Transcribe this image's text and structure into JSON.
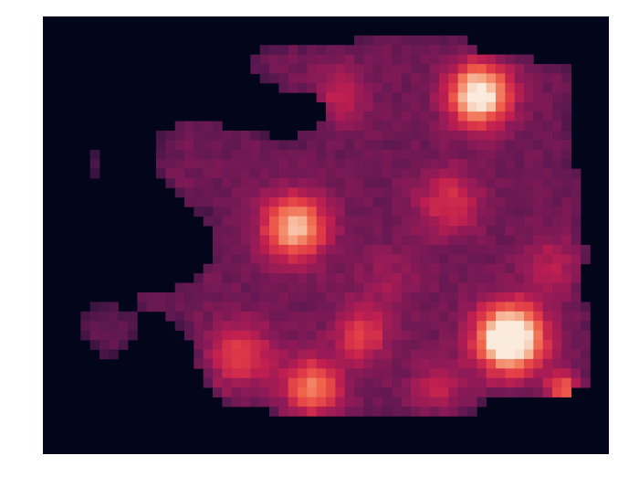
{
  "chart_data": {
    "type": "heatmap",
    "title": "",
    "xlabel": "",
    "ylabel": "",
    "colormap": "rocket",
    "background": "#03051a",
    "grid": false,
    "axes_visible": false,
    "value_range": [
      0,
      1
    ],
    "grid_size": {
      "cols": 60,
      "rows": 46
    },
    "region_polygon": [
      [
        22,
        4
      ],
      [
        24,
        3
      ],
      [
        32,
        3
      ],
      [
        34,
        2
      ],
      [
        45,
        2
      ],
      [
        47,
        4
      ],
      [
        51,
        4
      ],
      [
        53,
        5
      ],
      [
        56,
        5
      ],
      [
        56,
        16
      ],
      [
        57,
        16
      ],
      [
        57,
        24
      ],
      [
        58,
        24
      ],
      [
        58,
        26
      ],
      [
        57,
        26
      ],
      [
        57,
        30
      ],
      [
        58,
        30
      ],
      [
        58,
        39
      ],
      [
        57,
        39
      ],
      [
        55,
        40
      ],
      [
        48,
        40
      ],
      [
        46,
        42
      ],
      [
        35,
        42
      ],
      [
        28,
        42
      ],
      [
        20,
        41
      ],
      [
        18,
        40
      ],
      [
        17,
        38
      ],
      [
        16,
        35
      ],
      [
        14,
        32
      ],
      [
        13,
        31
      ],
      [
        10,
        31
      ],
      [
        10,
        29
      ],
      [
        13,
        29
      ],
      [
        15,
        28
      ],
      [
        17,
        27
      ],
      [
        18,
        25
      ],
      [
        18,
        22
      ],
      [
        16,
        20
      ],
      [
        13,
        18
      ],
      [
        12,
        16
      ],
      [
        12,
        13
      ],
      [
        13,
        12
      ],
      [
        14,
        12
      ],
      [
        14,
        11
      ],
      [
        17,
        11
      ],
      [
        22,
        12
      ],
      [
        26,
        13
      ],
      [
        29,
        12
      ],
      [
        30,
        11
      ],
      [
        30,
        9
      ],
      [
        28,
        8
      ],
      [
        26,
        8
      ],
      [
        24,
        7
      ],
      [
        22,
        5
      ]
    ],
    "extra_regions": [
      {
        "polygon": [
          [
            4,
            31
          ],
          [
            7,
            30
          ],
          [
            10,
            31
          ],
          [
            10,
            34
          ],
          [
            8,
            36
          ],
          [
            5,
            35
          ],
          [
            4,
            33
          ]
        ]
      },
      {
        "polygon": [
          [
            5,
            14
          ],
          [
            6,
            14
          ],
          [
            6,
            17
          ],
          [
            5,
            17
          ]
        ]
      }
    ],
    "hotspots": [
      {
        "x": 46.3,
        "y": 8.2,
        "sigma": 2.3,
        "amp": 0.78
      },
      {
        "x": 49.5,
        "y": 33.8,
        "sigma": 2.5,
        "amp": 0.95
      },
      {
        "x": 26.7,
        "y": 22.2,
        "sigma": 2.4,
        "amp": 0.62
      },
      {
        "x": 28.6,
        "y": 39.0,
        "sigma": 2.2,
        "amp": 0.48
      },
      {
        "x": 21.0,
        "y": 35.6,
        "sigma": 2.4,
        "amp": 0.32
      },
      {
        "x": 33.8,
        "y": 33.5,
        "sigma": 2.0,
        "amp": 0.32
      },
      {
        "x": 55.2,
        "y": 39.4,
        "sigma": 1.3,
        "amp": 0.45
      },
      {
        "x": 43.0,
        "y": 19.5,
        "sigma": 2.4,
        "amp": 0.28
      },
      {
        "x": 31.5,
        "y": 8.3,
        "sigma": 2.0,
        "amp": 0.22
      },
      {
        "x": 42.0,
        "y": 39.0,
        "sigma": 2.0,
        "amp": 0.2
      },
      {
        "x": 54.0,
        "y": 26.0,
        "sigma": 2.2,
        "amp": 0.18
      },
      {
        "x": 36.5,
        "y": 28.0,
        "sigma": 2.5,
        "amp": 0.12
      }
    ],
    "base_level": 0.3
  }
}
